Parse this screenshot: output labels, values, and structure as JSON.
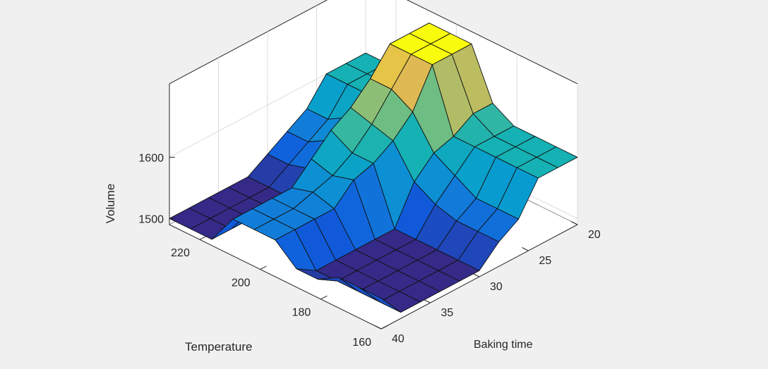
{
  "chart_data": {
    "type": "surface",
    "title": "",
    "xlabel": "Baking time",
    "ylabel": "Temperature",
    "zlabel": "Volume",
    "xlim": [
      20,
      40
    ],
    "ylim": [
      160,
      230
    ],
    "zlim": [
      1490,
      1720
    ],
    "x_ticks": [
      20,
      25,
      30,
      35,
      40
    ],
    "y_ticks": [
      160,
      180,
      200,
      220
    ],
    "z_ticks": [
      1500,
      1600
    ],
    "colormap": "parula",
    "grid": true,
    "legend": "none",
    "x": [
      20,
      22,
      24,
      26,
      28,
      30,
      32,
      34,
      36,
      38,
      40
    ],
    "y": [
      160,
      167,
      174,
      181,
      188,
      195,
      202,
      209,
      216,
      223,
      230
    ],
    "z": [
      [
        1600,
        1600,
        1600,
        1550,
        1530,
        1500,
        1500,
        1500,
        1500,
        1500,
        1540
      ],
      [
        1600,
        1600,
        1600,
        1550,
        1530,
        1500,
        1500,
        1500,
        1500,
        1500,
        1540
      ],
      [
        1600,
        1600,
        1600,
        1550,
        1530,
        1500,
        1500,
        1500,
        1500,
        1500,
        1540
      ],
      [
        1600,
        1600,
        1600,
        1570,
        1540,
        1500,
        1500,
        1500,
        1500,
        1500,
        1520
      ],
      [
        1620,
        1620,
        1600,
        1590,
        1560,
        1500,
        1500,
        1500,
        1500,
        1500,
        1520
      ],
      [
        1700,
        1700,
        1700,
        1640,
        1610,
        1590,
        1580,
        1550,
        1550,
        1550,
        1550
      ],
      [
        1700,
        1700,
        1700,
        1660,
        1620,
        1590,
        1570,
        1560,
        1550,
        1550,
        1550
      ],
      [
        1700,
        1700,
        1700,
        1660,
        1630,
        1610,
        1580,
        1550,
        1550,
        1550,
        1550
      ],
      [
        1600,
        1600,
        1600,
        1580,
        1560,
        1530,
        1500,
        1500,
        1500,
        1500,
        1500
      ],
      [
        1600,
        1600,
        1600,
        1560,
        1540,
        1520,
        1500,
        1500,
        1500,
        1500,
        1500
      ],
      [
        1600,
        1600,
        1600,
        1560,
        1540,
        1520,
        1500,
        1500,
        1500,
        1500,
        1500
      ]
    ]
  }
}
